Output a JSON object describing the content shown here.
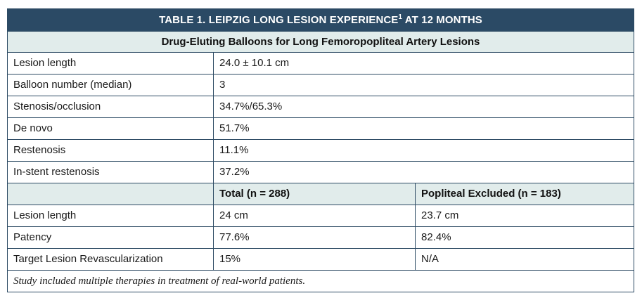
{
  "table": {
    "title": "TABLE 1.  LEIPZIG LONG LESION EXPERIENCE",
    "title_sup": "1",
    "title_suffix": " AT 12 MONTHS",
    "subtitle": "Drug-Eluting Balloons for Long Femoropopliteal Artery Lesions",
    "summary_rows": [
      {
        "label": "Lesion length",
        "value": "24.0 ± 10.1 cm"
      },
      {
        "label": "Balloon number (median)",
        "value": "3"
      },
      {
        "label": "Stenosis/occlusion",
        "value": "34.7%/65.3%"
      },
      {
        "label": "De novo",
        "value": "51.7%"
      },
      {
        "label": "Restenosis",
        "value": "11.1%"
      },
      {
        "label": "In-stent restenosis",
        "value": "37.2%"
      }
    ],
    "columns": [
      "",
      "Total (n = 288)",
      "Popliteal Excluded (n = 183)"
    ],
    "outcome_rows": [
      {
        "label": "Lesion length",
        "total": "24 cm",
        "popliteal_excluded": "23.7 cm"
      },
      {
        "label": "Patency",
        "total": "77.6%",
        "popliteal_excluded": "82.4%"
      },
      {
        "label": "Target Lesion Revascularization",
        "total": "15%",
        "popliteal_excluded": "N/A"
      }
    ],
    "note": "Study included multiple therapies in treatment of real-world patients."
  }
}
